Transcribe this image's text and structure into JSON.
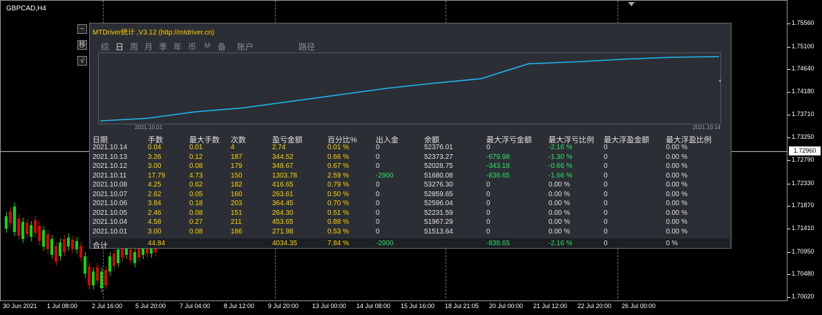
{
  "symbol": "GBPCAD,H4",
  "current_price": "1.72960",
  "price_labels": [
    "1.75560",
    "1.75100",
    "1.74640",
    "1.74180",
    "1.73710",
    "1.73250",
    "1.72790",
    "1.72330",
    "1.71870",
    "1.71410",
    "1.70950",
    "1.70480",
    "1.70020"
  ],
  "time_labels": [
    "30 Jun 2021",
    "1 Jul 08:00",
    "2 Jul 16:00",
    "5 Jul 20:00",
    "7 Jul 04:00",
    "8 Jul 12:00",
    "9 Jul 20:00",
    "13 Jul 00:00",
    "14 Jul 08:00",
    "15 Jul 16:00",
    "18 Jul 21:05",
    "20 Jul 00:00",
    "21 Jul 12:00",
    "22 Jul 20:00",
    "26 Jul 00:00"
  ],
  "side_buttons": [
    "−",
    "移",
    "√"
  ],
  "panel": {
    "title": "MTDriver统计 ,V3.12 (http://mtdriver.cn)",
    "tabs": [
      "综",
      "日",
      "周",
      "月",
      "季",
      "年",
      "币",
      "M",
      "备",
      "账户",
      "路径"
    ],
    "active_tab": "日",
    "equity_start_label": "2021.10.01",
    "equity_end_label": "2021.10.14",
    "equity_curve": [
      51513.64,
      51967.29,
      52231.59,
      52596.04,
      52859.65,
      53276.3,
      51680.08,
      52028.75,
      52373.27,
      52376.01
    ],
    "headers": [
      "日期",
      "手数",
      "最大手数",
      "次数",
      "盈亏金额",
      "百分比%",
      "出入金",
      "余额",
      "最大浮亏金额",
      "最大浮亏比例",
      "最大浮盈金额",
      "最大浮盈比例"
    ],
    "rows": [
      [
        "2021.10.14",
        "0.04",
        "0.01",
        "4",
        "2.74",
        "0.01 %",
        "0",
        "52376.01",
        "0",
        "-2.16 %",
        "0",
        "0.00 %"
      ],
      [
        "2021.10.13",
        "3.26",
        "0.12",
        "187",
        "344.52",
        "0.66 %",
        "0",
        "52373.27",
        "-679.98",
        "-1.30 %",
        "0",
        "0.00 %"
      ],
      [
        "2021.10.12",
        "3.00",
        "0.08",
        "179",
        "348.67",
        "0.67 %",
        "0",
        "52028.75",
        "-343.18",
        "-0.66 %",
        "0",
        "0.00 %"
      ],
      [
        "2021.10.11",
        "17.79",
        "4.73",
        "150",
        "1303.78",
        "2.59 %",
        "-2900",
        "51680.08",
        "-838.65",
        "-1.66 %",
        "0",
        "0.00 %"
      ],
      [
        "2021.10.08",
        "4.25",
        "0.62",
        "182",
        "416.65",
        "0.79 %",
        "0",
        "53276.30",
        "0",
        "0.00 %",
        "0",
        "0.00 %"
      ],
      [
        "2021.10.07",
        "2.62",
        "0.05",
        "160",
        "263.61",
        "0.50 %",
        "0",
        "52859.65",
        "0",
        "0.00 %",
        "0",
        "0.00 %"
      ],
      [
        "2021.10.06",
        "3.84",
        "0.18",
        "203",
        "364.45",
        "0.70 %",
        "0",
        "52596.04",
        "0",
        "0.00 %",
        "0",
        "0.00 %"
      ],
      [
        "2021.10.05",
        "2.46",
        "0.08",
        "151",
        "264.30",
        "0.51 %",
        "0",
        "52231.59",
        "0",
        "0.00 %",
        "0",
        "0.00 %"
      ],
      [
        "2021.10.04",
        "4.58",
        "0.27",
        "211",
        "453.65",
        "0.88 %",
        "0",
        "51967.29",
        "0",
        "0.00 %",
        "0",
        "0.00 %"
      ],
      [
        "2021.10.01",
        "3.00",
        "0.08",
        "186",
        "271.98",
        "0.53 %",
        "0",
        "51513.64",
        "0",
        "0.00 %",
        "0",
        "0.00 %"
      ]
    ],
    "total": [
      "合计",
      "44.84",
      "",
      "",
      "4034.35",
      "7.84 %",
      "-2900",
      "",
      "-838.65",
      "-2.16 %",
      "0",
      "0 %"
    ]
  },
  "colors": {
    "yellow": "#ffd200",
    "green": "#2ee06a",
    "curve": "#1fb4f0",
    "bull": "#00e000",
    "bear": "#e00000"
  }
}
